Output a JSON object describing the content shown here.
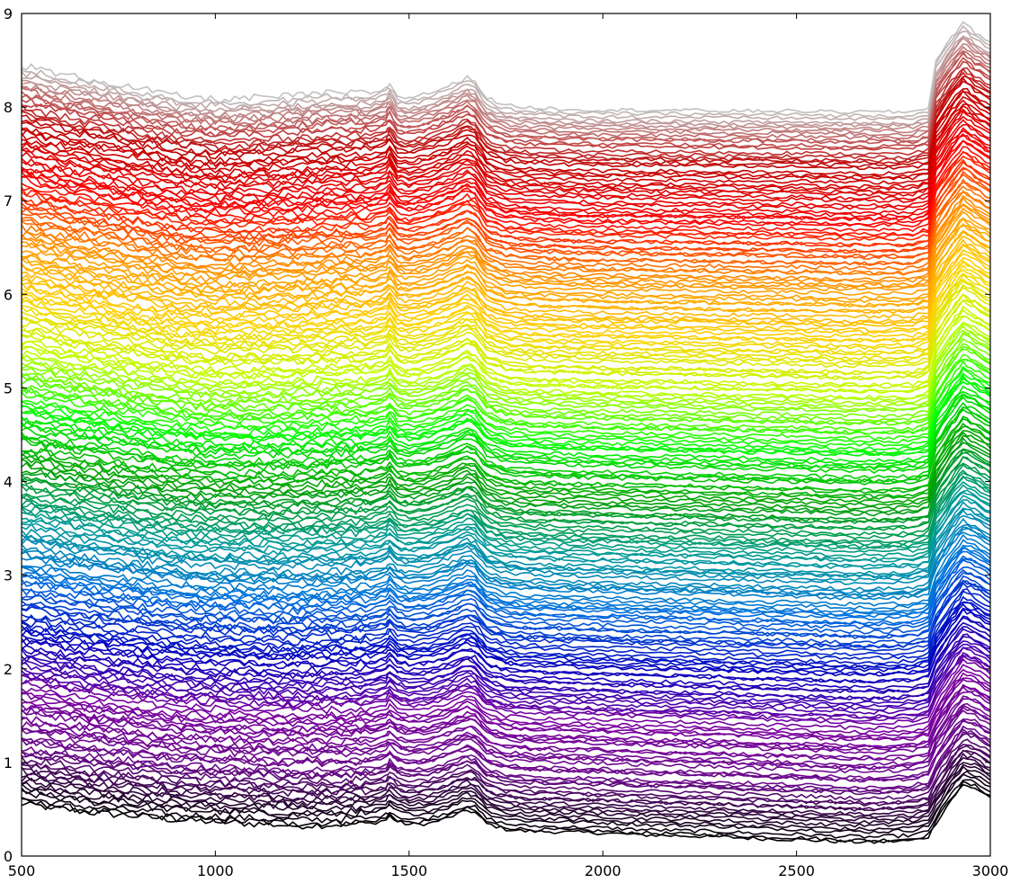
{
  "chart_data": {
    "type": "line",
    "title": "",
    "xlabel": "",
    "ylabel": "",
    "xlim": [
      500,
      3000
    ],
    "ylim": [
      0,
      9
    ],
    "x_ticks": [
      "500",
      "1000",
      "1500",
      "2000",
      "2500",
      "3000"
    ],
    "y_ticks": [
      "0",
      "1",
      "2",
      "3",
      "4",
      "5",
      "6",
      "7",
      "8",
      "9"
    ],
    "grid": false,
    "legend": "none",
    "series_count": 230,
    "series_offset_range": [
      0.25,
      8.05
    ],
    "colormap": [
      "#000000",
      "#6a0a8a",
      "#7a00a0",
      "#0000c0",
      "#0070e0",
      "#009a9a",
      "#00a000",
      "#00ff00",
      "#c0ff00",
      "#ffd000",
      "#ff9000",
      "#ff0000",
      "#c00000",
      "#c0c0c0"
    ],
    "x": [
      500,
      600,
      700,
      800,
      900,
      1000,
      1100,
      1200,
      1300,
      1400,
      1440,
      1450,
      1470,
      1500,
      1550,
      1600,
      1650,
      1670,
      1700,
      1750,
      1800,
      1900,
      2000,
      2100,
      2200,
      2300,
      2400,
      2500,
      2600,
      2700,
      2800,
      2840,
      2860,
      2900,
      2930,
      2960,
      3000
    ],
    "representative_series": [
      {
        "y": [
          0.55,
          0.5,
          0.45,
          0.42,
          0.38,
          0.36,
          0.34,
          0.32,
          0.33,
          0.34,
          0.38,
          0.42,
          0.36,
          0.33,
          0.34,
          0.4,
          0.48,
          0.46,
          0.34,
          0.28,
          0.26,
          0.25,
          0.24,
          0.22,
          0.21,
          0.2,
          0.18,
          0.17,
          0.15,
          0.14,
          0.16,
          0.2,
          0.35,
          0.6,
          0.75,
          0.72,
          0.62
        ]
      },
      {
        "y": [
          8.45,
          8.35,
          8.28,
          8.2,
          8.12,
          8.08,
          8.1,
          8.12,
          8.15,
          8.15,
          8.2,
          8.25,
          8.12,
          8.1,
          8.15,
          8.22,
          8.32,
          8.28,
          8.1,
          8.02,
          8.0,
          7.98,
          7.97,
          7.97,
          7.97,
          7.96,
          7.96,
          7.96,
          7.95,
          7.95,
          7.95,
          8.0,
          8.5,
          8.75,
          8.9,
          8.8,
          8.7
        ]
      }
    ]
  }
}
